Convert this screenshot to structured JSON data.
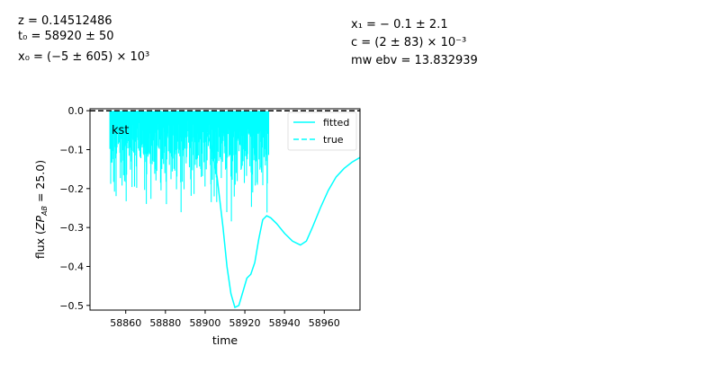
{
  "fit_params": {
    "z": "z = 0.14512486",
    "t0": "t₀ = 58920 ± 50",
    "x0": "x₀ = (−5 ± 605) × 10³",
    "x1": "x₁ = − 0.1 ± 2.1",
    "c": "c = (2 ± 83) × 10⁻³",
    "mwebv": "mw ebv = 13.832939"
  },
  "chart_data": {
    "type": "line",
    "band_label": "kst",
    "xlabel": "time",
    "ylabel": "flux (ZP_AB = 25.0)",
    "xlim": [
      58842,
      58978
    ],
    "ylim": [
      -0.512,
      0.005
    ],
    "xticks": [
      58860,
      58880,
      58900,
      58920,
      58940,
      58960
    ],
    "yticks": [
      0.0,
      -0.1,
      -0.2,
      -0.3,
      -0.4,
      -0.5
    ],
    "ytick_labels": [
      "0.0",
      "−0.1",
      "−0.2",
      "−0.3",
      "−0.4",
      "−0.5"
    ],
    "legend": {
      "position": "top-right",
      "entries": [
        "fitted",
        "true"
      ]
    },
    "colors": {
      "fitted": "#00ffff",
      "true": "#00ffff",
      "data": "#00ffff",
      "zero_line": "#000000"
    },
    "series": [
      {
        "name": "fitted",
        "style": "solid",
        "x": [
          58900,
          58903,
          58906,
          58909,
          58911,
          58913,
          58915,
          58917,
          58919,
          58921,
          58923,
          58925,
          58927,
          58929,
          58931,
          58933,
          58936,
          58940,
          58944,
          58948,
          58951,
          58954,
          58958,
          58962,
          58966,
          58970,
          58974,
          58978
        ],
        "y": [
          -0.04,
          -0.09,
          -0.17,
          -0.3,
          -0.4,
          -0.47,
          -0.505,
          -0.5,
          -0.465,
          -0.43,
          -0.42,
          -0.39,
          -0.33,
          -0.28,
          -0.27,
          -0.275,
          -0.29,
          -0.315,
          -0.335,
          -0.345,
          -0.335,
          -0.3,
          -0.25,
          -0.205,
          -0.17,
          -0.148,
          -0.132,
          -0.12
        ]
      },
      {
        "name": "true",
        "style": "dashed",
        "x": [
          58842,
          58978
        ],
        "y": [
          0.0,
          0.0
        ]
      },
      {
        "name": "observations",
        "style": "spikes",
        "x_range": [
          58852,
          58932
        ],
        "note_values": [
          -0.12,
          -0.17,
          -0.24,
          -0.09,
          -0.15,
          -0.2,
          -0.11,
          -0.06,
          -0.13,
          -0.21,
          -0.1,
          -0.18,
          -0.14,
          -0.08,
          -0.16,
          -0.23,
          -0.19,
          -0.12,
          -0.05,
          -0.1,
          -0.12,
          -0.07,
          -0.13,
          -0.1
        ]
      }
    ]
  }
}
